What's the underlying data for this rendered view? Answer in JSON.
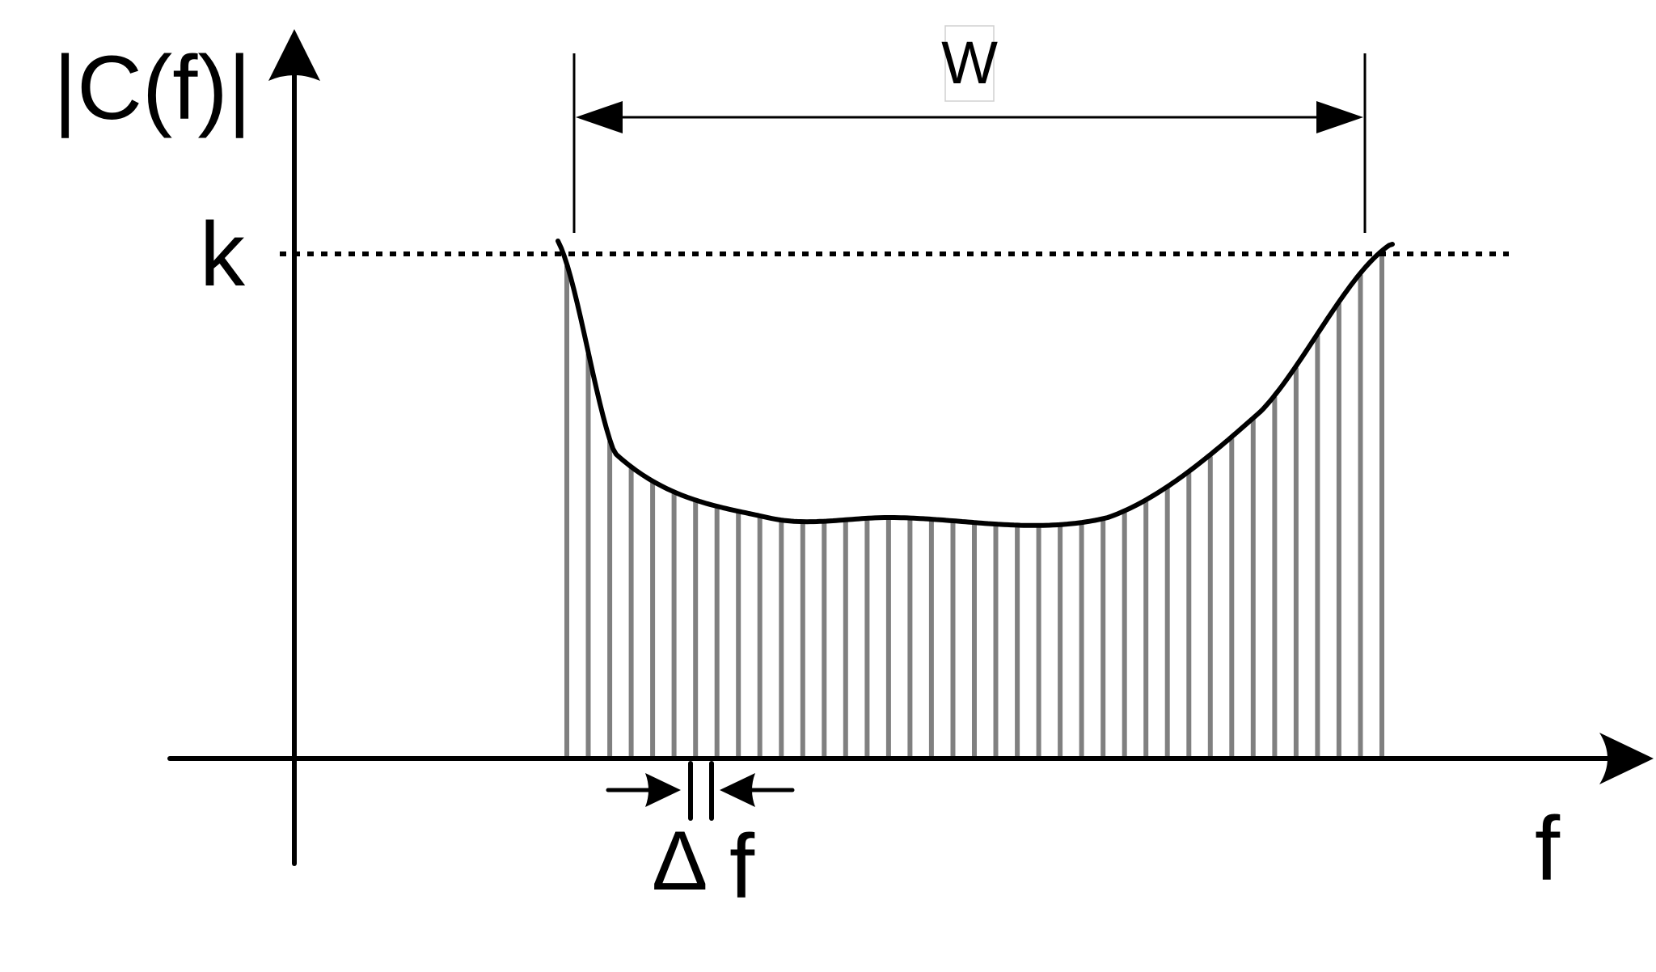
{
  "labels": {
    "y_axis": "|C(f)|",
    "x_axis": "f",
    "level": "k",
    "width": "W",
    "delta_symbol": "Δ",
    "delta_var": "f"
  },
  "colors": {
    "ink": "#000000",
    "bars": "#808080",
    "width_box": "#d0d0d0"
  },
  "icons": {
    "axis_arrows": "filled-triangle-arrowheads",
    "dimension_arrows": "double-headed-dimension-arrow"
  }
}
